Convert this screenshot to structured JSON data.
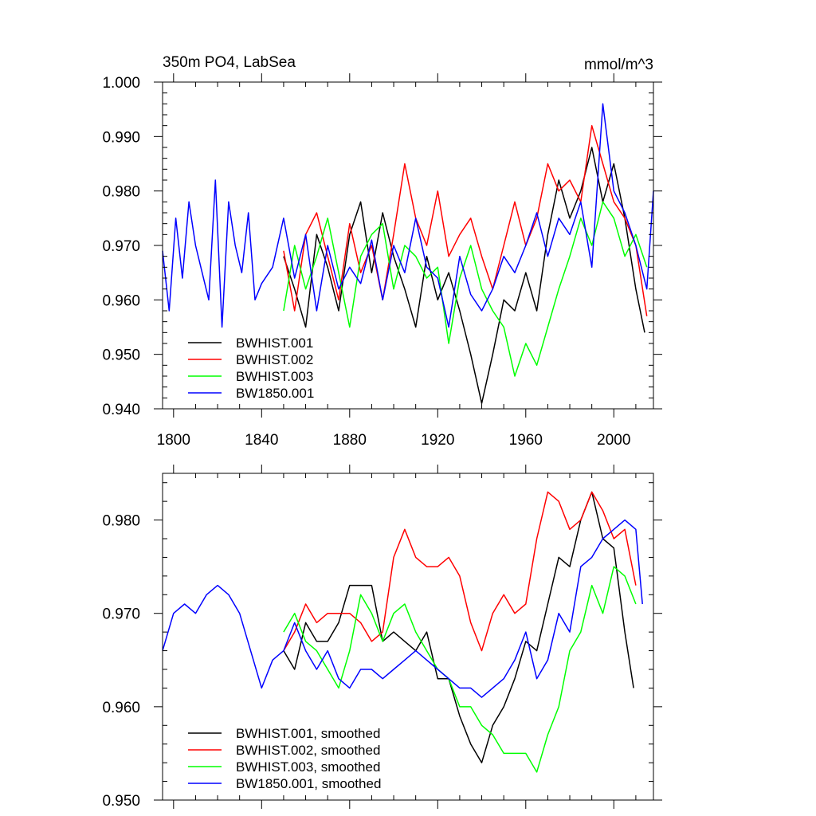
{
  "chart_data": [
    {
      "type": "line",
      "title": "350m PO4, LabSea",
      "units": "mmol/m^3",
      "xlim": [
        1795,
        2018
      ],
      "ylim": [
        0.94,
        1.0
      ],
      "xticks": [
        1800,
        1840,
        1880,
        1920,
        1960,
        2000
      ],
      "xtick_labels": [
        "1800",
        "1840",
        "1880",
        "1920",
        "1960",
        "2000"
      ],
      "yticks": [
        0.94,
        0.95,
        0.96,
        0.97,
        0.98,
        0.99,
        1.0
      ],
      "ytick_labels": [
        "0.940",
        "0.950",
        "0.960",
        "0.970",
        "0.980",
        "0.990",
        "1.000"
      ],
      "legend_location": "bottom-left",
      "series": [
        {
          "name": "BWHIST.001",
          "color": "#000000",
          "x": [
            1850,
            1855,
            1860,
            1865,
            1870,
            1875,
            1880,
            1885,
            1890,
            1895,
            1900,
            1905,
            1910,
            1915,
            1920,
            1925,
            1930,
            1935,
            1940,
            1945,
            1950,
            1955,
            1960,
            1965,
            1970,
            1975,
            1980,
            1985,
            1990,
            1995,
            2000,
            2005,
            2010,
            2014
          ],
          "y": [
            0.968,
            0.962,
            0.955,
            0.972,
            0.966,
            0.958,
            0.972,
            0.978,
            0.965,
            0.976,
            0.968,
            0.962,
            0.955,
            0.968,
            0.96,
            0.965,
            0.958,
            0.95,
            0.941,
            0.95,
            0.96,
            0.958,
            0.965,
            0.958,
            0.972,
            0.982,
            0.975,
            0.98,
            0.988,
            0.978,
            0.985,
            0.975,
            0.962,
            0.954
          ]
        },
        {
          "name": "BWHIST.002",
          "color": "#ff0000",
          "x": [
            1850,
            1855,
            1860,
            1865,
            1870,
            1875,
            1880,
            1885,
            1890,
            1895,
            1900,
            1905,
            1910,
            1915,
            1920,
            1925,
            1930,
            1935,
            1940,
            1945,
            1950,
            1955,
            1960,
            1965,
            1970,
            1975,
            1980,
            1985,
            1990,
            1995,
            2000,
            2005,
            2010,
            2015
          ],
          "y": [
            0.969,
            0.958,
            0.972,
            0.976,
            0.968,
            0.96,
            0.974,
            0.965,
            0.97,
            0.96,
            0.972,
            0.985,
            0.975,
            0.97,
            0.98,
            0.968,
            0.972,
            0.975,
            0.968,
            0.962,
            0.97,
            0.978,
            0.97,
            0.975,
            0.985,
            0.98,
            0.982,
            0.978,
            0.992,
            0.985,
            0.978,
            0.975,
            0.97,
            0.957
          ]
        },
        {
          "name": "BWHIST.003",
          "color": "#00ff00",
          "x": [
            1850,
            1855,
            1860,
            1865,
            1870,
            1875,
            1880,
            1885,
            1890,
            1895,
            1900,
            1905,
            1910,
            1915,
            1920,
            1925,
            1930,
            1935,
            1940,
            1945,
            1950,
            1955,
            1960,
            1965,
            1970,
            1975,
            1980,
            1985,
            1990,
            1995,
            2000,
            2005,
            2010,
            2015
          ],
          "y": [
            0.958,
            0.97,
            0.962,
            0.968,
            0.975,
            0.965,
            0.955,
            0.968,
            0.972,
            0.974,
            0.962,
            0.97,
            0.968,
            0.964,
            0.966,
            0.952,
            0.964,
            0.97,
            0.962,
            0.958,
            0.955,
            0.946,
            0.952,
            0.948,
            0.955,
            0.962,
            0.968,
            0.975,
            0.97,
            0.978,
            0.975,
            0.968,
            0.972,
            0.966
          ]
        },
        {
          "name": "BW1850.001",
          "color": "#0000ff",
          "x": [
            1795,
            1798,
            1801,
            1804,
            1807,
            1810,
            1813,
            1816,
            1819,
            1822,
            1825,
            1828,
            1831,
            1834,
            1837,
            1840,
            1845,
            1850,
            1855,
            1860,
            1865,
            1870,
            1875,
            1880,
            1885,
            1890,
            1895,
            1900,
            1905,
            1910,
            1915,
            1920,
            1925,
            1930,
            1935,
            1940,
            1945,
            1950,
            1955,
            1960,
            1965,
            1970,
            1975,
            1980,
            1985,
            1990,
            1995,
            2000,
            2005,
            2010,
            2015,
            2018
          ],
          "y": [
            0.969,
            0.958,
            0.975,
            0.964,
            0.978,
            0.97,
            0.965,
            0.96,
            0.982,
            0.955,
            0.978,
            0.97,
            0.965,
            0.976,
            0.96,
            0.963,
            0.966,
            0.975,
            0.964,
            0.972,
            0.958,
            0.97,
            0.962,
            0.966,
            0.963,
            0.971,
            0.96,
            0.97,
            0.965,
            0.975,
            0.966,
            0.964,
            0.955,
            0.968,
            0.961,
            0.958,
            0.962,
            0.968,
            0.965,
            0.97,
            0.976,
            0.968,
            0.975,
            0.972,
            0.978,
            0.966,
            0.996,
            0.98,
            0.976,
            0.97,
            0.962,
            0.98
          ]
        }
      ]
    },
    {
      "type": "line",
      "xlim": [
        1795,
        2018
      ],
      "ylim": [
        0.95,
        0.985
      ],
      "xticks": [
        1800,
        1840,
        1880,
        1920,
        1960,
        2000
      ],
      "yticks": [
        0.95,
        0.96,
        0.97,
        0.98
      ],
      "ytick_labels": [
        "0.950",
        "0.960",
        "0.970",
        "0.980"
      ],
      "legend_location": "bottom-left",
      "series": [
        {
          "name": "BWHIST.001, smoothed",
          "color": "#000000",
          "x": [
            1850,
            1855,
            1860,
            1865,
            1870,
            1875,
            1880,
            1885,
            1890,
            1895,
            1900,
            1905,
            1910,
            1915,
            1920,
            1925,
            1930,
            1935,
            1940,
            1945,
            1950,
            1955,
            1960,
            1965,
            1970,
            1975,
            1980,
            1985,
            1990,
            1995,
            2000,
            2005,
            2009
          ],
          "y": [
            0.966,
            0.964,
            0.969,
            0.967,
            0.967,
            0.969,
            0.973,
            0.973,
            0.973,
            0.967,
            0.968,
            0.967,
            0.966,
            0.968,
            0.963,
            0.963,
            0.959,
            0.956,
            0.954,
            0.958,
            0.96,
            0.963,
            0.967,
            0.966,
            0.971,
            0.976,
            0.975,
            0.98,
            0.983,
            0.978,
            0.977,
            0.968,
            0.962
          ]
        },
        {
          "name": "BWHIST.002, smoothed",
          "color": "#ff0000",
          "x": [
            1850,
            1855,
            1860,
            1865,
            1870,
            1875,
            1880,
            1885,
            1890,
            1895,
            1900,
            1905,
            1910,
            1915,
            1920,
            1925,
            1930,
            1935,
            1940,
            1945,
            1950,
            1955,
            1960,
            1965,
            1970,
            1975,
            1980,
            1985,
            1990,
            1995,
            2000,
            2005,
            2010
          ],
          "y": [
            0.966,
            0.968,
            0.971,
            0.969,
            0.97,
            0.97,
            0.97,
            0.969,
            0.967,
            0.968,
            0.976,
            0.979,
            0.976,
            0.975,
            0.975,
            0.976,
            0.974,
            0.969,
            0.966,
            0.97,
            0.972,
            0.97,
            0.971,
            0.978,
            0.983,
            0.982,
            0.979,
            0.98,
            0.983,
            0.981,
            0.978,
            0.979,
            0.973
          ]
        },
        {
          "name": "BWHIST.003, smoothed",
          "color": "#00ff00",
          "x": [
            1850,
            1855,
            1860,
            1865,
            1870,
            1875,
            1880,
            1885,
            1890,
            1895,
            1900,
            1905,
            1910,
            1915,
            1920,
            1925,
            1930,
            1935,
            1940,
            1945,
            1950,
            1955,
            1960,
            1965,
            1970,
            1975,
            1980,
            1985,
            1990,
            1995,
            2000,
            2005,
            2010
          ],
          "y": [
            0.968,
            0.97,
            0.967,
            0.966,
            0.964,
            0.962,
            0.966,
            0.972,
            0.97,
            0.967,
            0.97,
            0.971,
            0.968,
            0.966,
            0.964,
            0.963,
            0.96,
            0.96,
            0.958,
            0.957,
            0.955,
            0.955,
            0.955,
            0.953,
            0.957,
            0.96,
            0.966,
            0.968,
            0.973,
            0.97,
            0.975,
            0.974,
            0.971
          ]
        },
        {
          "name": "BW1850.001, smoothed",
          "color": "#0000ff",
          "x": [
            1795,
            1800,
            1805,
            1810,
            1815,
            1820,
            1825,
            1830,
            1835,
            1840,
            1845,
            1850,
            1855,
            1860,
            1865,
            1870,
            1875,
            1880,
            1885,
            1890,
            1895,
            1900,
            1905,
            1910,
            1915,
            1920,
            1925,
            1930,
            1935,
            1940,
            1945,
            1950,
            1955,
            1960,
            1965,
            1970,
            1975,
            1980,
            1985,
            1990,
            1995,
            2000,
            2005,
            2010,
            2013
          ],
          "y": [
            0.966,
            0.97,
            0.971,
            0.97,
            0.972,
            0.973,
            0.972,
            0.97,
            0.966,
            0.962,
            0.965,
            0.966,
            0.969,
            0.966,
            0.964,
            0.966,
            0.963,
            0.962,
            0.964,
            0.964,
            0.963,
            0.964,
            0.965,
            0.966,
            0.965,
            0.964,
            0.963,
            0.962,
            0.962,
            0.961,
            0.962,
            0.963,
            0.965,
            0.968,
            0.963,
            0.965,
            0.97,
            0.968,
            0.975,
            0.976,
            0.978,
            0.979,
            0.98,
            0.979,
            0.971
          ]
        }
      ]
    }
  ]
}
